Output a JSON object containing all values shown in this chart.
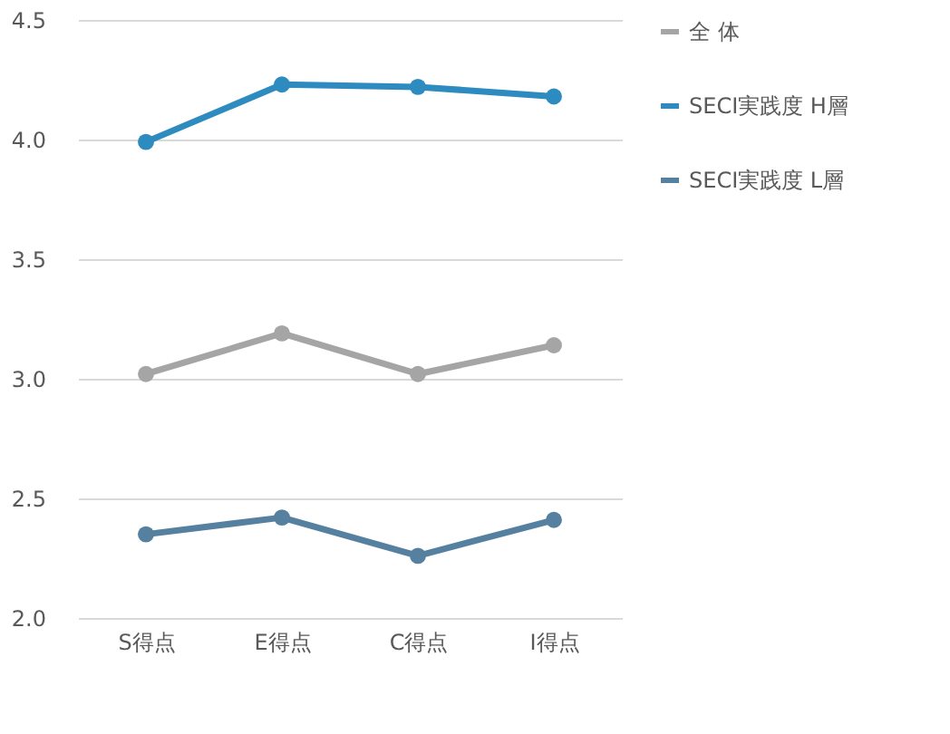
{
  "chart_data": {
    "type": "line",
    "categories": [
      "S得点",
      "E得点",
      "C得点",
      "I得点"
    ],
    "series": [
      {
        "name": "全 体",
        "color": "#a5a5a5",
        "values": [
          3.02,
          3.19,
          3.02,
          3.14
        ]
      },
      {
        "name": "SECI実践度 H層",
        "color": "#2e8bc0",
        "values": [
          3.99,
          4.23,
          4.22,
          4.18
        ]
      },
      {
        "name": "SECI実践度 L層",
        "color": "#55809f",
        "values": [
          2.35,
          2.42,
          2.26,
          2.41
        ]
      }
    ],
    "ylim": [
      2.0,
      4.5
    ],
    "yticks": [
      {
        "value": 2.0,
        "label": "2.0"
      },
      {
        "value": 2.5,
        "label": "2.5"
      },
      {
        "value": 3.0,
        "label": "3.0"
      },
      {
        "value": 3.5,
        "label": "3.5"
      },
      {
        "value": 4.0,
        "label": "4.0"
      },
      {
        "value": 4.5,
        "label": "4.5"
      }
    ],
    "grid": "y",
    "legend": "right",
    "marker": "circle",
    "line_style": "solid"
  }
}
